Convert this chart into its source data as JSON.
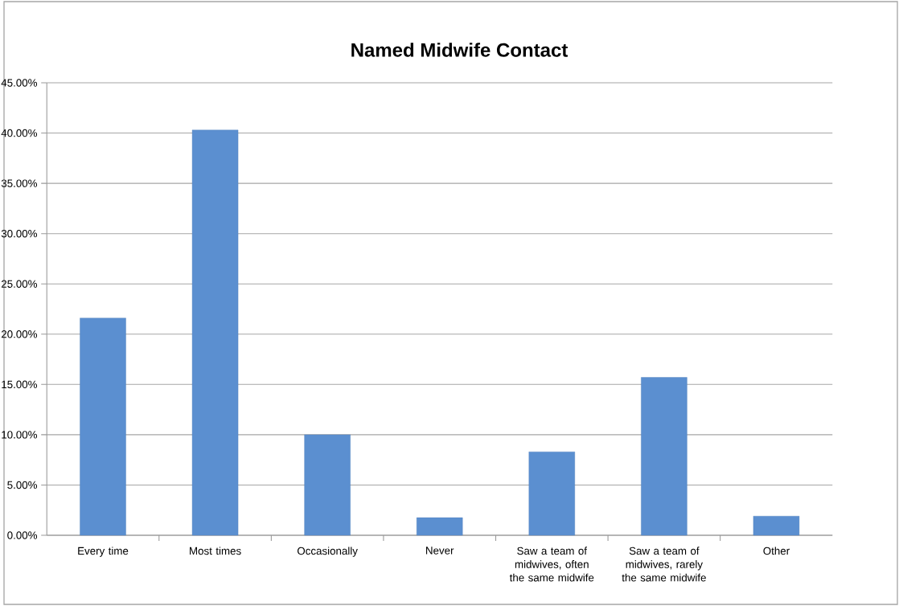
{
  "chart_data": {
    "type": "bar",
    "title": "Named Midwife Contact",
    "categories": [
      "Every time",
      "Most times",
      "Occasionally",
      "Never",
      "Saw a team of midwives, often the same midwife",
      "Saw a team of midwives, rarely the same midwife",
      "Other"
    ],
    "values": [
      21.6,
      40.3,
      10.0,
      1.75,
      8.3,
      15.7,
      1.9
    ],
    "color": "#5b8fd0",
    "ylim": [
      0,
      45
    ],
    "yticks": [
      {
        "value": 0,
        "label": "0.00%"
      },
      {
        "value": 5,
        "label": "5.00%"
      },
      {
        "value": 10,
        "label": "10.00%"
      },
      {
        "value": 15,
        "label": "15.00%"
      },
      {
        "value": 20,
        "label": "20.00%"
      },
      {
        "value": 25,
        "label": "25.00%"
      },
      {
        "value": 30,
        "label": "30.00%"
      },
      {
        "value": 35,
        "label": "35.00%"
      },
      {
        "value": 40,
        "label": "40.00%"
      },
      {
        "value": 45,
        "label": "45.00%"
      }
    ],
    "grid": "y"
  }
}
